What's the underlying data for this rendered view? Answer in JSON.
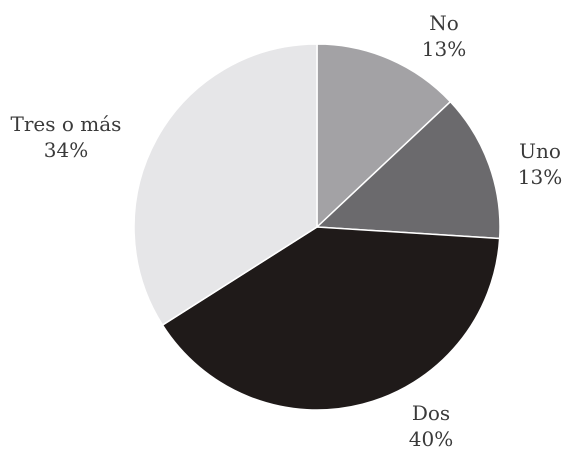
{
  "chart_data": {
    "type": "pie",
    "title": "",
    "slices": [
      {
        "label": "No",
        "value": 13,
        "value_label": "13%",
        "color": "#a3a2a5"
      },
      {
        "label": "Uno",
        "value": 13,
        "value_label": "13%",
        "color": "#6b6a6d"
      },
      {
        "label": "Dos",
        "value": 40,
        "value_label": "40%",
        "color": "#1f1a19"
      },
      {
        "label": "Tres o más",
        "value": 34,
        "value_label": "34%",
        "color": "#e6e6e8"
      }
    ],
    "start": "12 o'clock",
    "direction": "clockwise",
    "labels": "outside"
  }
}
